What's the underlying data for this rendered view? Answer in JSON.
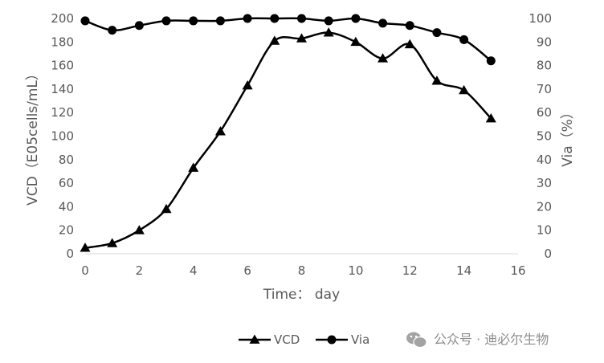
{
  "chart_data": {
    "type": "line",
    "title": "",
    "xlabel": "Time： day",
    "ylabel_left": "VCD（E05cells/mL）",
    "ylabel_right": "Via（%）",
    "xlim": [
      0,
      16
    ],
    "ylim_left": [
      0,
      200
    ],
    "ylim_right": [
      0,
      100
    ],
    "x_ticks": [
      "0",
      "2",
      "4",
      "6",
      "8",
      "10",
      "12",
      "14",
      "16"
    ],
    "y_left_ticks": [
      "0",
      "20",
      "40",
      "60",
      "80",
      "100",
      "120",
      "140",
      "160",
      "180",
      "200"
    ],
    "y_right_ticks": [
      "0",
      "10",
      "20",
      "30",
      "40",
      "50",
      "60",
      "70",
      "80",
      "90",
      "100"
    ],
    "grid": false,
    "legend_position": "bottom",
    "series": [
      {
        "name": "VCD",
        "axis": "left",
        "marker": "triangle",
        "color": "#000000",
        "x": [
          0,
          1,
          2,
          3,
          4,
          5,
          6,
          7,
          8,
          9,
          10,
          11,
          12,
          13,
          14,
          15
        ],
        "values": [
          5,
          9,
          20,
          38,
          73,
          104,
          143,
          181,
          183,
          188,
          180,
          166,
          178,
          147,
          139,
          115
        ]
      },
      {
        "name": "Via",
        "axis": "right",
        "marker": "circle",
        "color": "#000000",
        "x": [
          0,
          1,
          2,
          3,
          4,
          5,
          6,
          7,
          8,
          9,
          10,
          11,
          12,
          13,
          14,
          15
        ],
        "values": [
          99,
          95,
          97,
          99,
          99,
          99,
          100,
          100,
          100,
          99,
          100,
          98,
          97,
          94,
          91,
          82
        ]
      }
    ]
  },
  "watermark": {
    "text": "公众号 · 迪必尔生物",
    "icon": "wechat-icon"
  }
}
